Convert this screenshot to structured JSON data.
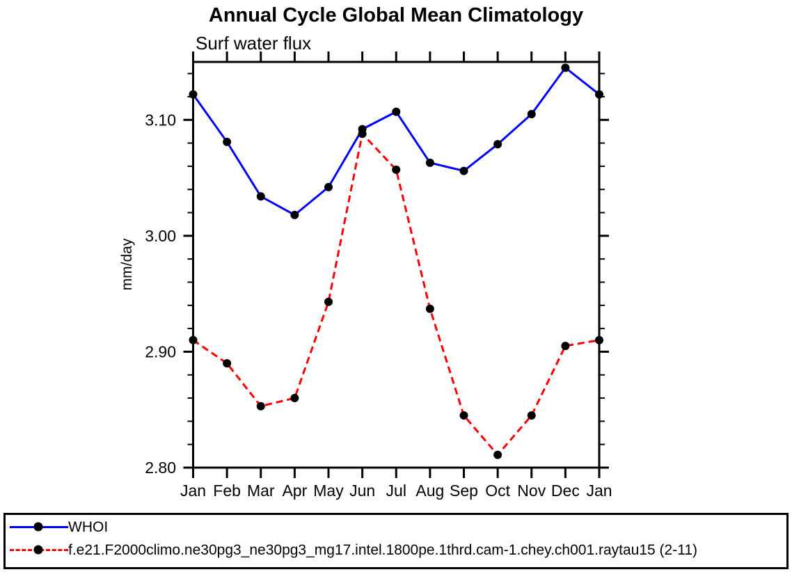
{
  "chart_data": {
    "type": "line",
    "title": "Annual Cycle Global Mean Climatology",
    "subtitle": "Surf water flux",
    "ylabel": "mm/day",
    "categories": [
      "Jan",
      "Feb",
      "Mar",
      "Apr",
      "May",
      "Jun",
      "Jul",
      "Aug",
      "Sep",
      "Oct",
      "Nov",
      "Dec",
      "Jan"
    ],
    "ylim": [
      2.8,
      3.15
    ],
    "yticks": [
      {
        "value": 2.8,
        "label": "2.80"
      },
      {
        "value": 2.9,
        "label": "2.90"
      },
      {
        "value": 3.0,
        "label": "3.00"
      },
      {
        "value": 3.1,
        "label": "3.10"
      }
    ],
    "minor_tick_step": 0.02,
    "grid": false,
    "legend_position": "bottom",
    "axis_color": "#000000",
    "marker_color": "#000000",
    "series": [
      {
        "name": "WHOI",
        "color": "#0000ff",
        "style": "solid",
        "values": [
          3.122,
          3.081,
          3.034,
          3.018,
          3.042,
          3.092,
          3.107,
          3.063,
          3.056,
          3.079,
          3.105,
          3.145,
          3.122
        ]
      },
      {
        "name": "f.e21.F2000climo.ne30pg3_ne30pg3_mg17.intel.1800pe.1thrd.cam-1.chey.ch001.raytau15 (2-11)",
        "color": "#ff0000",
        "style": "dashed",
        "values": [
          2.91,
          2.89,
          2.853,
          2.86,
          2.943,
          3.088,
          3.057,
          2.937,
          2.845,
          2.811,
          2.845,
          2.905,
          2.91
        ]
      }
    ]
  }
}
